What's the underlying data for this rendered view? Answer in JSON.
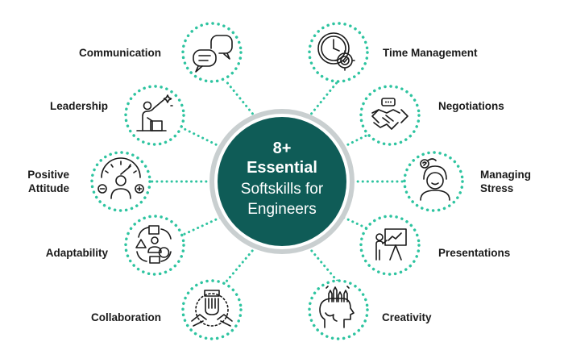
{
  "center": {
    "line1": "8+",
    "line2": "Essential",
    "line3": "Softskills for",
    "line4": "Engineers"
  },
  "colors": {
    "accent": "#2ec4a0",
    "center_fill": "#0f5c57",
    "center_ring": "#c9cfd0",
    "text": "#1a1a1a"
  },
  "skills": {
    "communication": {
      "label": "Communication",
      "icon": "chat-bubbles-icon"
    },
    "time_management": {
      "label": "Time Management",
      "icon": "clock-gear-icon"
    },
    "leadership": {
      "label": "Leadership",
      "icon": "leader-podium-icon"
    },
    "negotiations": {
      "label": "Negotiations",
      "icon": "handshake-icon"
    },
    "positive_attitude": {
      "label1": "Positive",
      "label2": "Attitude",
      "icon": "gauge-person-icon"
    },
    "managing_stress": {
      "label1": "Managing",
      "label2": "Stress",
      "icon": "stressed-person-icon"
    },
    "adaptability": {
      "label": "Adaptability",
      "icon": "shapes-cycle-icon"
    },
    "presentations": {
      "label": "Presentations",
      "icon": "presenter-board-icon"
    },
    "collaboration": {
      "label": "Collaboration",
      "icon": "team-hands-icon"
    },
    "creativity": {
      "label": "Creativity",
      "icon": "head-pencils-icon"
    }
  }
}
